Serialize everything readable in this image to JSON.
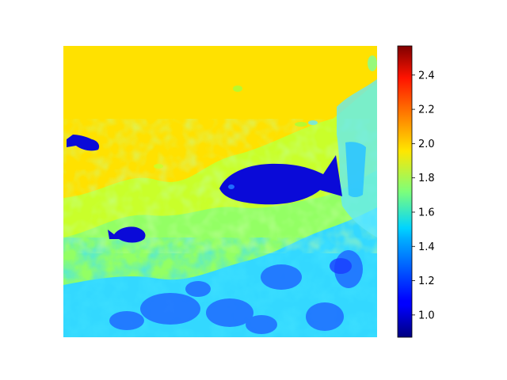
{
  "chart_data": {
    "type": "heatmap",
    "title": "",
    "xlabel": "",
    "ylabel": "",
    "colormap": "jet",
    "colorbar": {
      "min": 0.87,
      "max": 2.57,
      "ticks": [
        1.0,
        1.2,
        1.4,
        1.6,
        1.8,
        2.0,
        2.2,
        2.4
      ],
      "tick_labels": [
        "1.0",
        "1.2",
        "1.4",
        "1.6",
        "1.8",
        "2.0",
        "2.2",
        "2.4"
      ]
    },
    "axes_visible": false,
    "content": "depth/intensity map of an underwater scene with fish over a rocky bottom",
    "background_value": 2.0,
    "regions": [
      {
        "name": "open-water",
        "value": 1.97
      },
      {
        "name": "middle-band",
        "value": 1.75
      },
      {
        "name": "rocky-bottom",
        "value": 1.45
      },
      {
        "name": "rock-shadows",
        "value": 1.28
      },
      {
        "name": "large-fish",
        "value": 1.05
      },
      {
        "name": "small-fish-left",
        "value": 1.05
      },
      {
        "name": "small-fish-bottom",
        "value": 1.05
      },
      {
        "name": "right-coral",
        "value": 1.5
      }
    ]
  }
}
